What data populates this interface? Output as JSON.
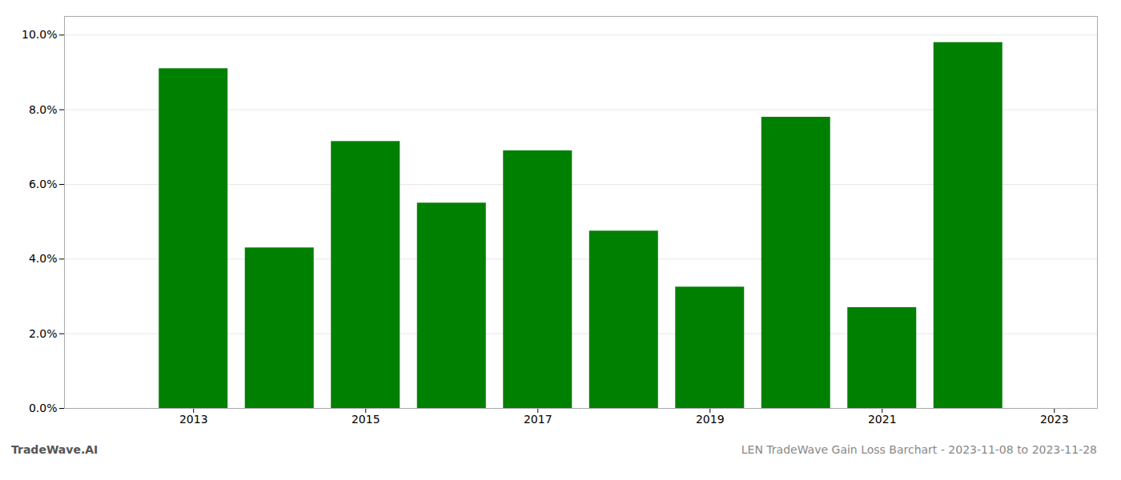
{
  "chart_data": {
    "type": "bar",
    "title": "LEN TradeWave Gain Loss Barchart - 2023-11-08 to 2023-11-28",
    "annotations": [
      "TradeWave.AI"
    ],
    "x": [
      2013,
      2014,
      2015,
      2016,
      2017,
      2018,
      2019,
      2020,
      2021,
      2022
    ],
    "values": [
      0.091,
      0.043,
      0.0715,
      0.055,
      0.069,
      0.0475,
      0.0325,
      0.078,
      0.027,
      0.098
    ],
    "color": "#008000",
    "xlim": [
      2011.5,
      2023.5
    ],
    "xticks": [
      2013,
      2015,
      2017,
      2019,
      2021,
      2023
    ],
    "ylim": [
      0,
      0.105
    ],
    "yticks": [
      {
        "value": 0.0,
        "label": "0.0%"
      },
      {
        "value": 0.02,
        "label": "2.0%"
      },
      {
        "value": 0.04,
        "label": "4.0%"
      },
      {
        "value": 0.06,
        "label": "6.0%"
      },
      {
        "value": 0.08,
        "label": "8.0%"
      },
      {
        "value": 0.1,
        "label": "10.0%"
      }
    ],
    "grid": true
  }
}
